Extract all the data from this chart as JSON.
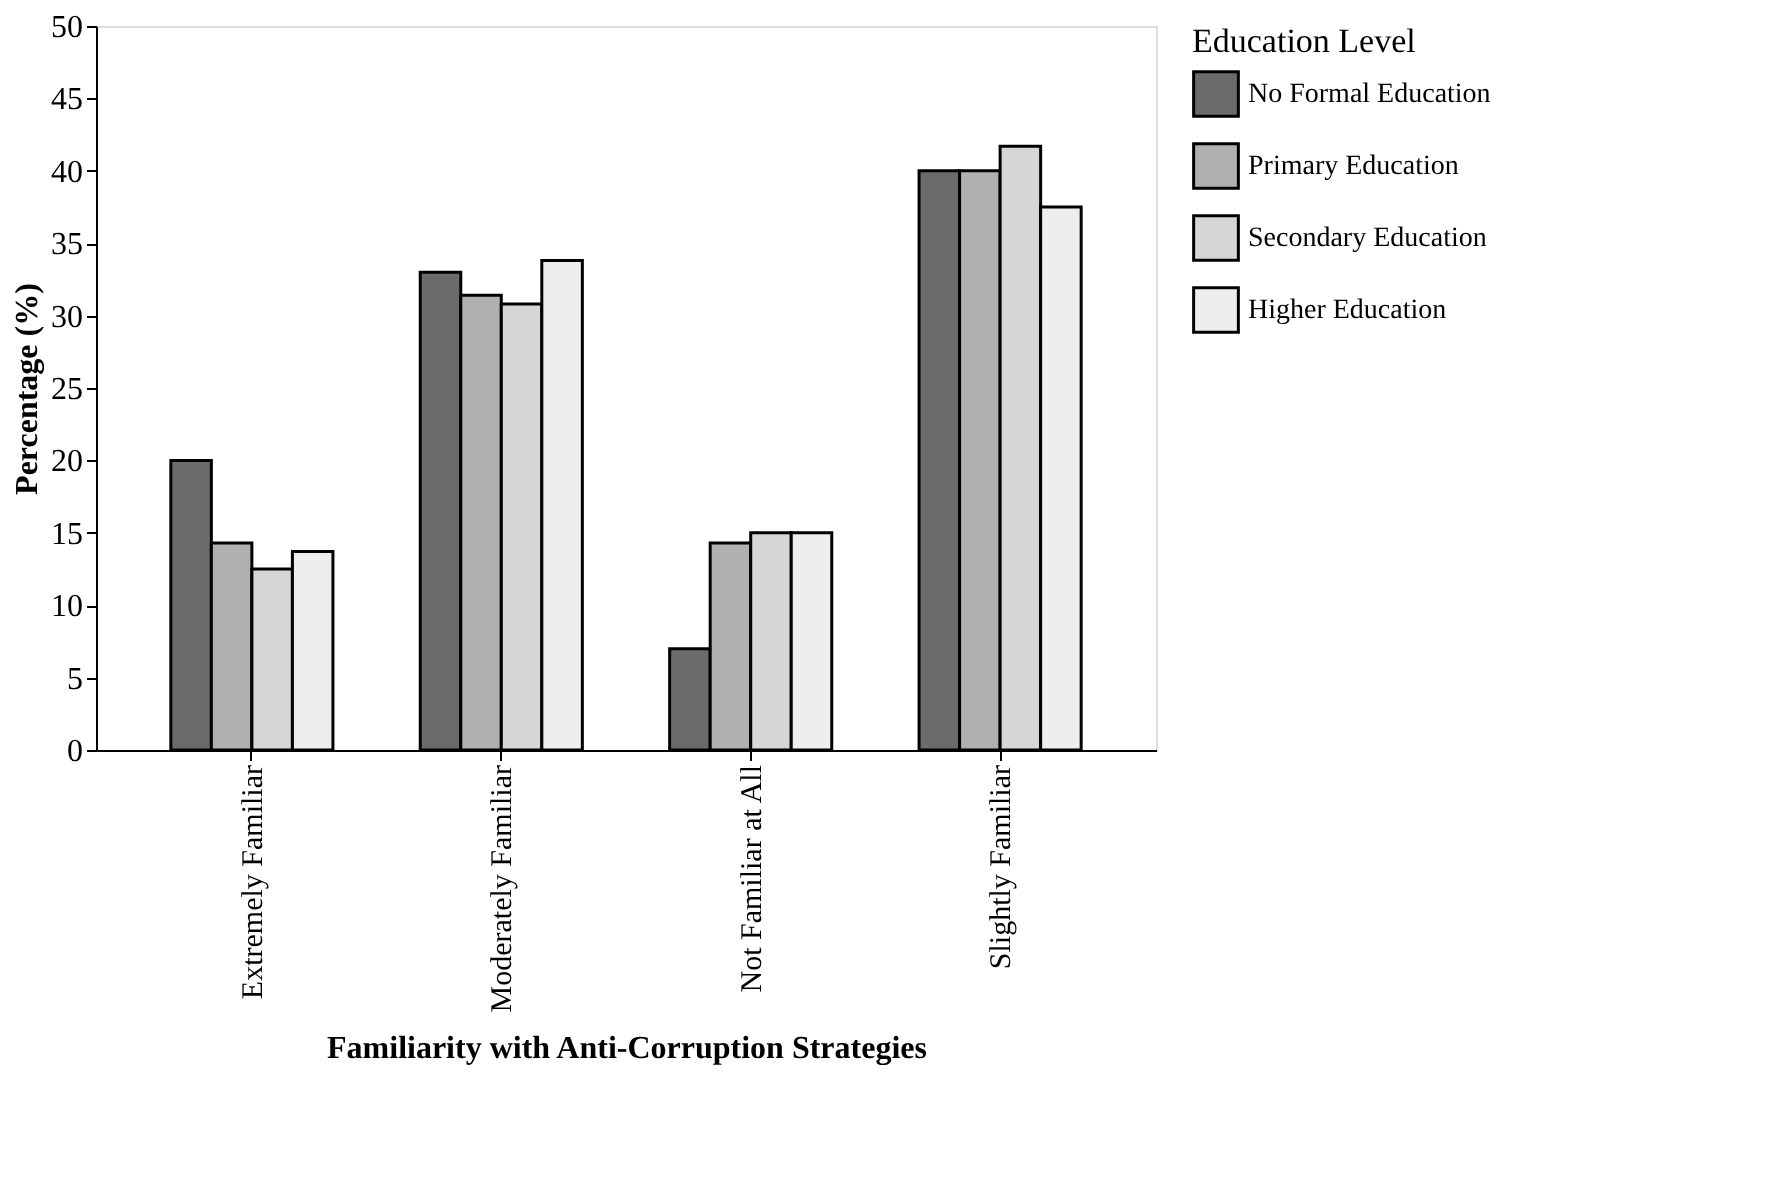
{
  "chart_data": {
    "type": "bar",
    "xlabel": "Familiarity with Anti-Corruption Strategies",
    "ylabel": "Percentage (%)",
    "legend_title": "Education Level",
    "categories": [
      "Extremely Familiar",
      "Moderately Familiar",
      "Not Familiar at All",
      "Slightly Familiar"
    ],
    "series": [
      {
        "name": "No Formal Education",
        "color": "#6b6b6b",
        "values": [
          20,
          33,
          7,
          40
        ]
      },
      {
        "name": "Primary Education",
        "color": "#b0b0b0",
        "values": [
          14.3,
          31.4,
          14.3,
          40
        ]
      },
      {
        "name": "Secondary Education",
        "color": "#d6d6d6",
        "values": [
          12.5,
          30.8,
          15,
          41.7
        ]
      },
      {
        "name": "Higher Education",
        "color": "#eeeeee",
        "values": [
          13.7,
          33.8,
          15,
          37.5
        ]
      }
    ],
    "ylim": [
      0,
      50
    ],
    "yticks": [
      0,
      5,
      10,
      15,
      20,
      25,
      30,
      35,
      40,
      45,
      50
    ],
    "grid": false,
    "legend": "right"
  }
}
